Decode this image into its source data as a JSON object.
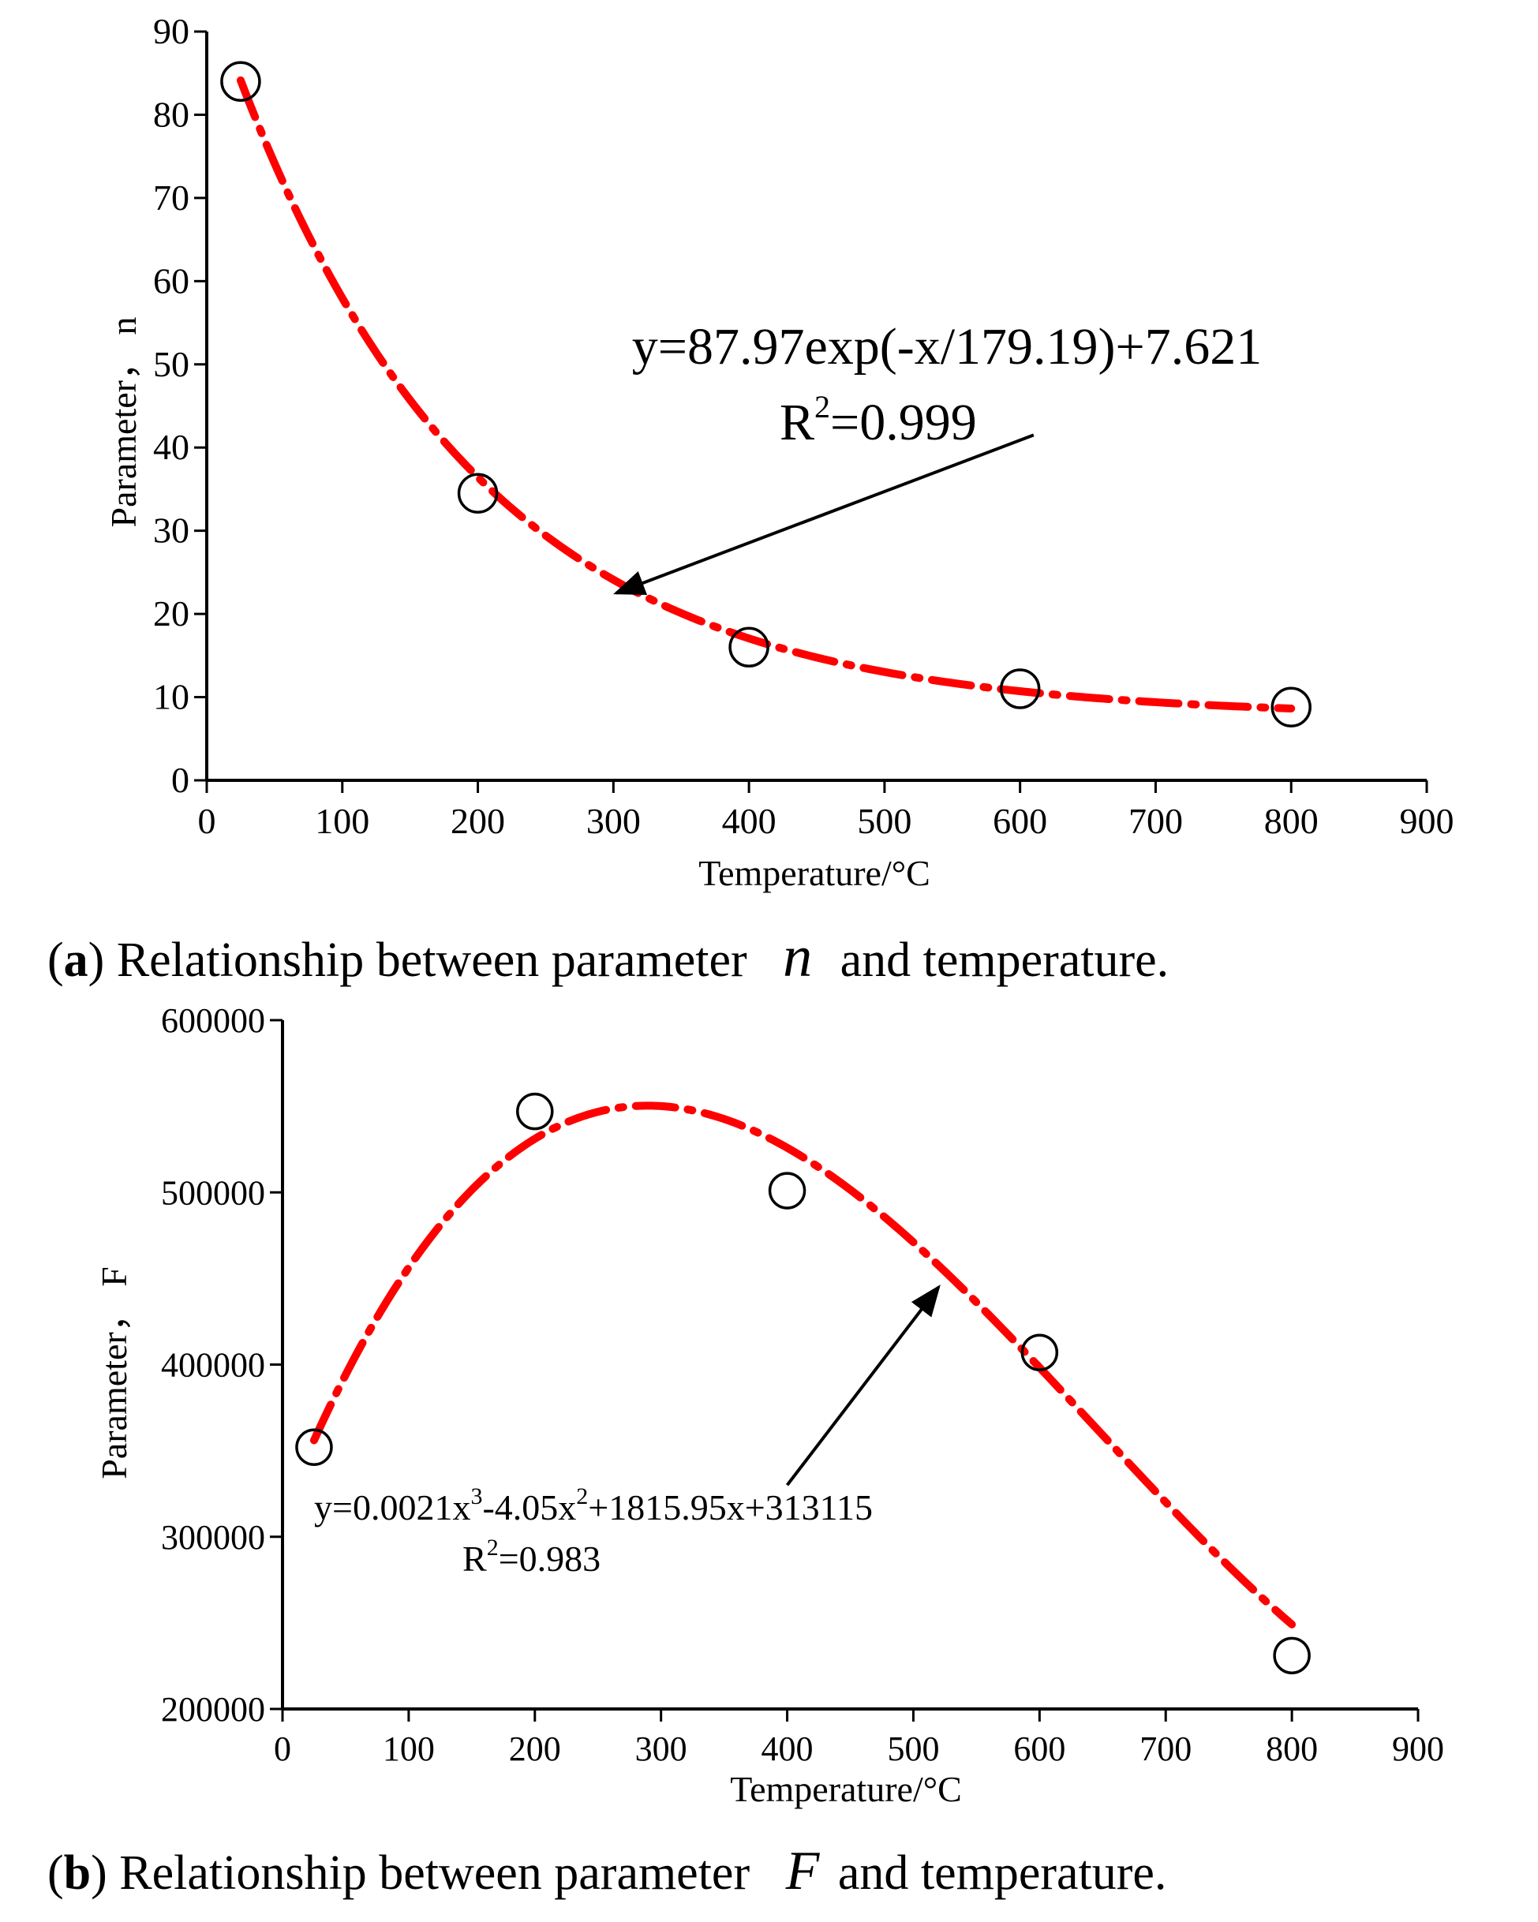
{
  "chart_data": [
    {
      "type": "scatter",
      "panel_label": "a",
      "caption": {
        "prefix": "(",
        "label": "a",
        "close": ")",
        "text_before": " Relationship between parameter ",
        "symbol": "n",
        "text_after": " and temperature."
      },
      "xlabel": "Temperature/°C",
      "ylabel": "Parameter， n",
      "xlim": [
        0,
        900
      ],
      "ylim": [
        0,
        90
      ],
      "x_ticks": [
        0,
        100,
        200,
        300,
        400,
        500,
        600,
        700,
        800,
        900
      ],
      "y_ticks": [
        0,
        10,
        20,
        30,
        40,
        50,
        60,
        70,
        80,
        90
      ],
      "x_tick_labels": [
        "0",
        "100",
        "200",
        "300",
        "400",
        "500",
        "600",
        "700",
        "800",
        "900"
      ],
      "y_tick_labels": [
        "0",
        "10",
        "20",
        "30",
        "40",
        "50",
        "60",
        "70",
        "80",
        "90"
      ],
      "points": {
        "x": [
          25,
          200,
          400,
          600,
          800
        ],
        "y": [
          84,
          34.5,
          16,
          11,
          8.8
        ]
      },
      "fit": {
        "kind": "exponential",
        "a": 87.97,
        "t": 179.19,
        "c": 7.621,
        "x_range": [
          25,
          800
        ],
        "equation": "y=87.97exp(-x/179.19)+7.621",
        "r2_label": "R",
        "r2_sup": "2",
        "r2_value": "=0.999"
      },
      "arrow": {
        "from": [
          610,
          41.5
        ],
        "to": [
          302,
          22.5
        ]
      },
      "colors": {
        "fit_line": "#ff0000",
        "markers": "#000000",
        "axes": "#000000"
      }
    },
    {
      "type": "scatter",
      "panel_label": "b",
      "caption": {
        "prefix": "(",
        "label": "b",
        "close": ")",
        "text_before": " Relationship between parameter ",
        "symbol": "F",
        "text_after": " and temperature."
      },
      "xlabel": "Temperature/°C",
      "ylabel": "Parameter， F",
      "xlim": [
        0,
        900
      ],
      "ylim": [
        200000,
        600000
      ],
      "x_ticks": [
        0,
        100,
        200,
        300,
        400,
        500,
        600,
        700,
        800,
        900
      ],
      "y_ticks": [
        200000,
        300000,
        400000,
        500000,
        600000
      ],
      "x_tick_labels": [
        "0",
        "100",
        "200",
        "300",
        "400",
        "500",
        "600",
        "700",
        "800",
        "900"
      ],
      "y_tick_labels": [
        "200000",
        "300000",
        "400000",
        "500000",
        "600000"
      ],
      "points": {
        "x": [
          25,
          200,
          400,
          600,
          800
        ],
        "y": [
          352000,
          547000,
          501000,
          407000,
          231000
        ]
      },
      "fit": {
        "kind": "cubic",
        "coefficients": [
          0.0021,
          -4.05,
          1815.95,
          313115
        ],
        "x_range": [
          25,
          800
        ],
        "equation_parts": [
          "y=0.0021x",
          "3",
          "-4.05x",
          "2",
          "+1815.95x+313115"
        ],
        "r2_label": "R",
        "r2_sup": "2",
        "r2_value": "=0.983"
      },
      "arrow": {
        "from": [
          400,
          330000
        ],
        "to": [
          520,
          445000
        ]
      },
      "colors": {
        "fit_line": "#ff0000",
        "markers": "#000000",
        "axes": "#000000"
      }
    }
  ]
}
